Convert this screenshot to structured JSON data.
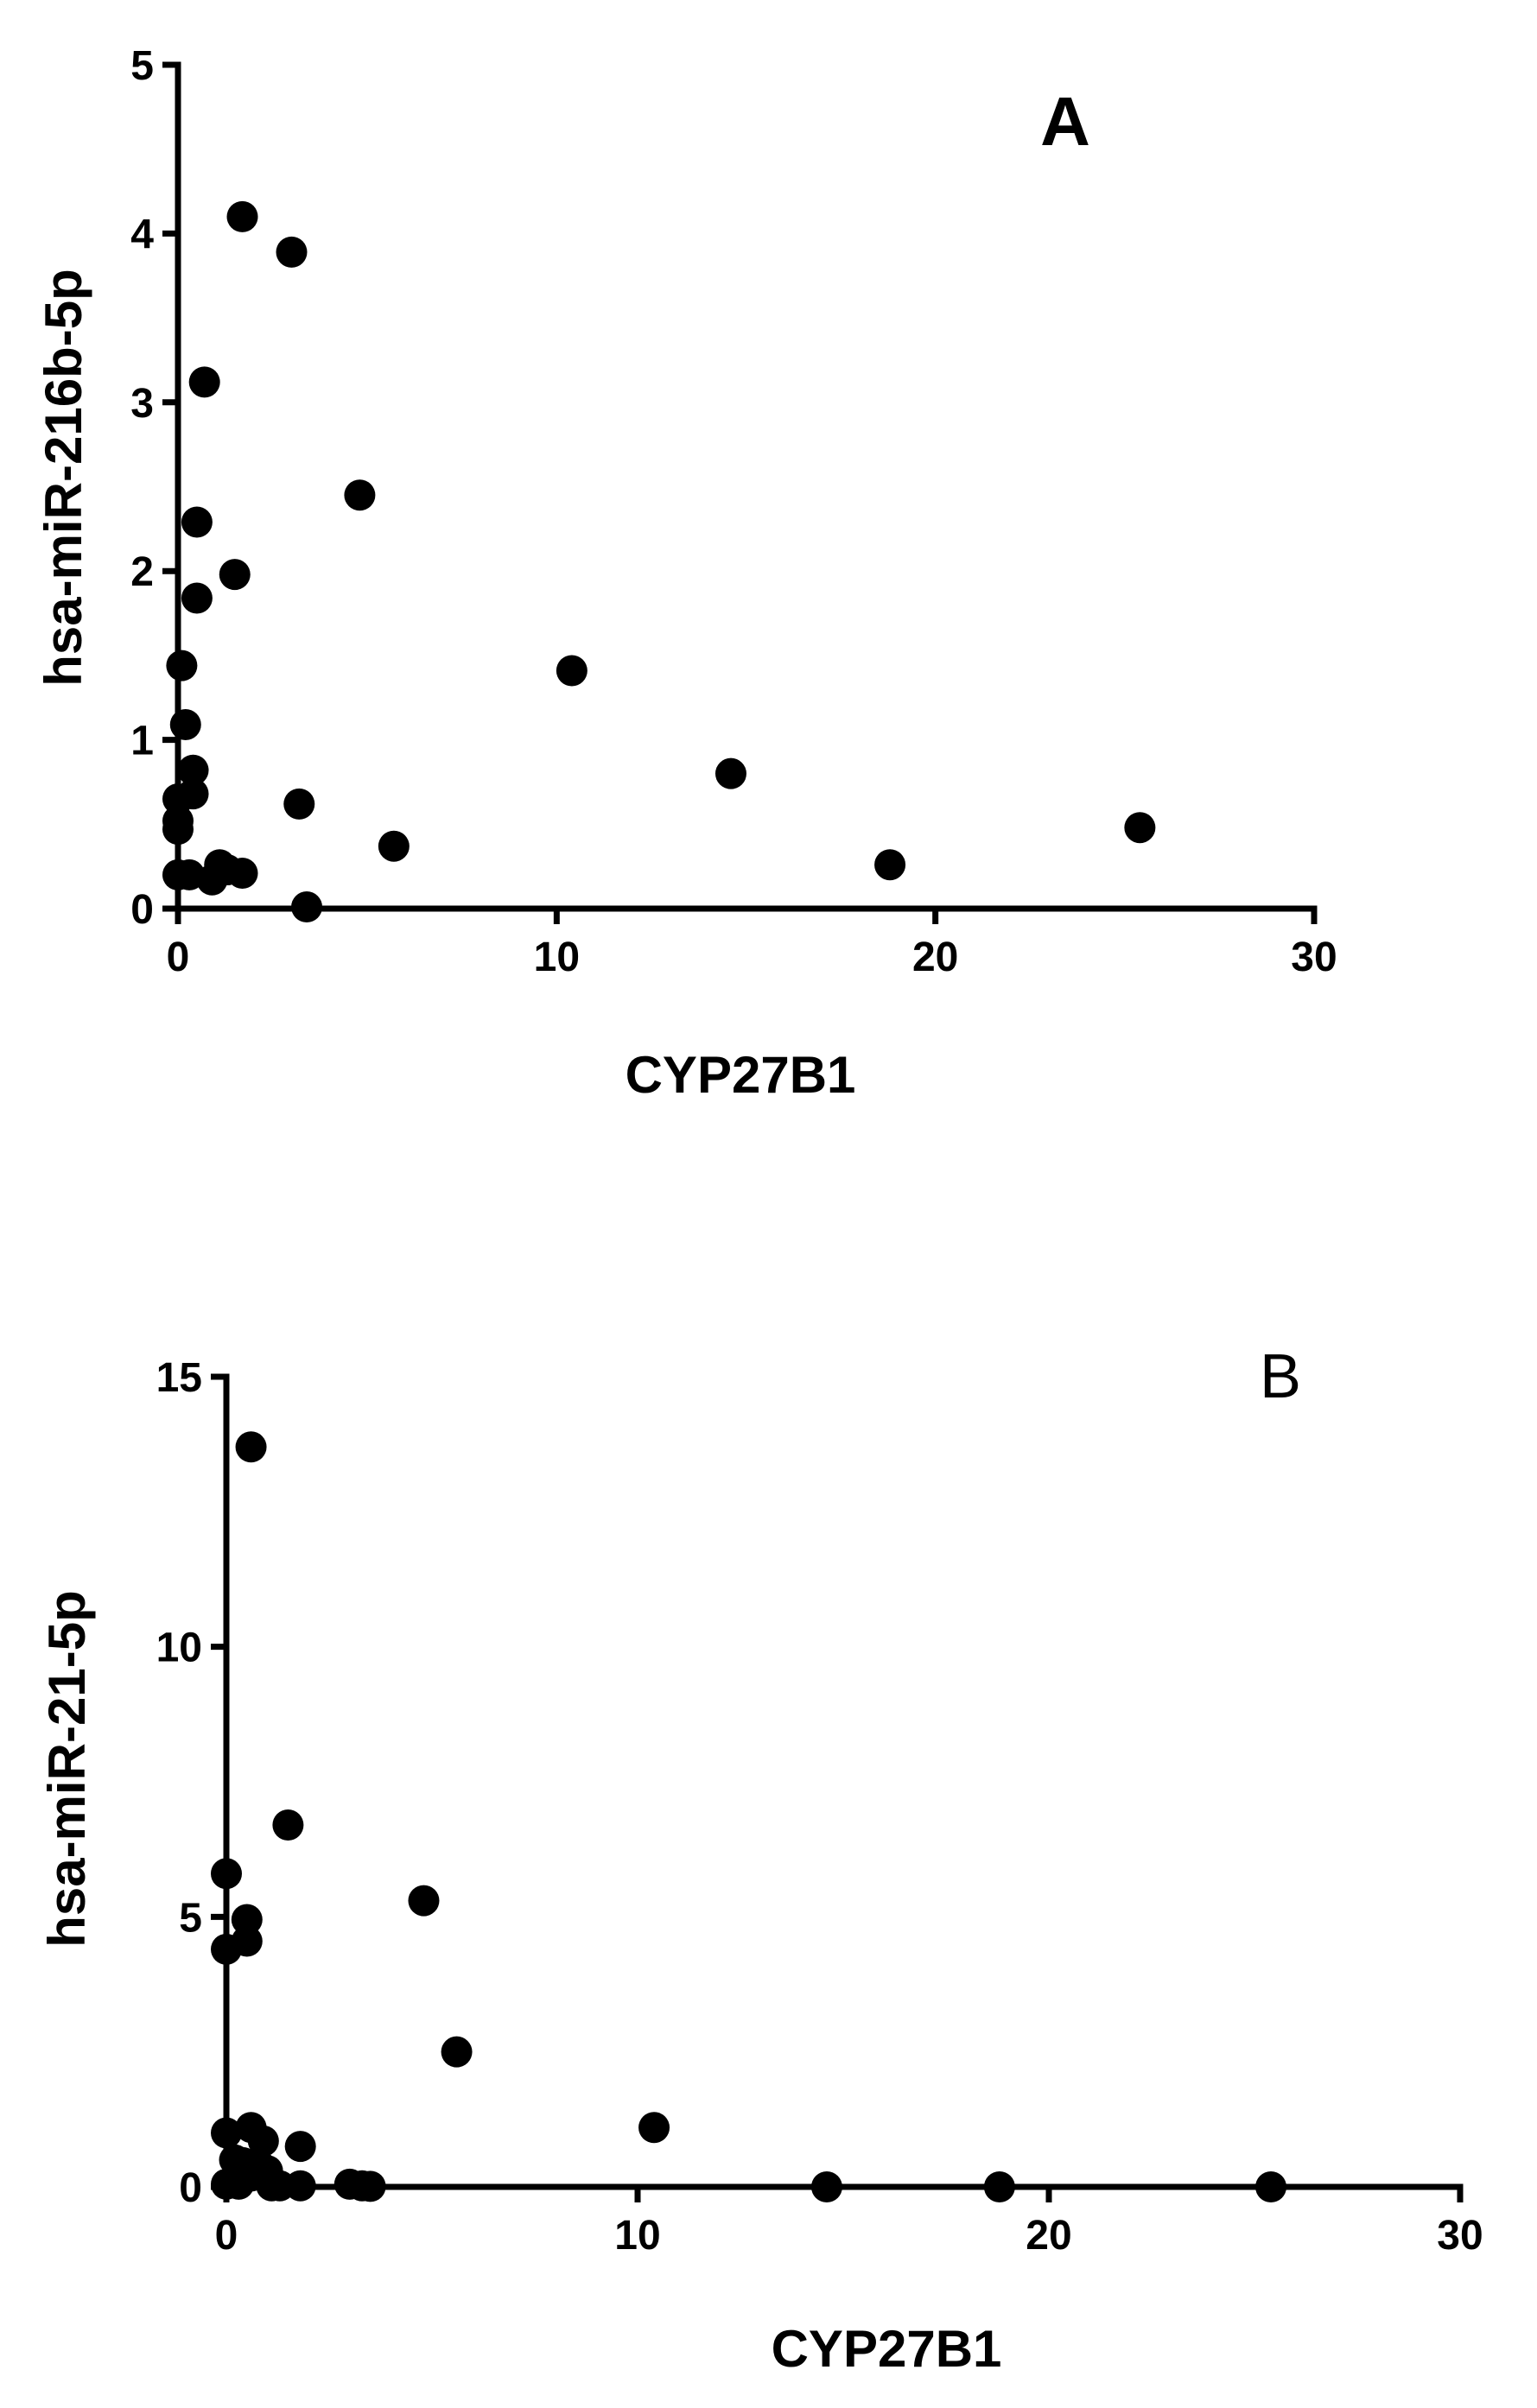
{
  "chart_data": [
    {
      "type": "scatter",
      "panel_label": "A",
      "xlabel": "CYP27B1",
      "ylabel": "hsa-miR-216b-5p",
      "xlim": [
        0,
        30
      ],
      "ylim": [
        0,
        5
      ],
      "xticks": [
        "0",
        "10",
        "20",
        "30"
      ],
      "yticks": [
        "0",
        "1",
        "2",
        "3",
        "4",
        "5"
      ],
      "points": [
        {
          "x": 1.7,
          "y": 4.1
        },
        {
          "x": 3.0,
          "y": 3.89
        },
        {
          "x": 0.7,
          "y": 3.12
        },
        {
          "x": 4.8,
          "y": 2.45
        },
        {
          "x": 0.5,
          "y": 2.29
        },
        {
          "x": 1.5,
          "y": 1.98
        },
        {
          "x": 0.5,
          "y": 1.84
        },
        {
          "x": 0.1,
          "y": 1.44
        },
        {
          "x": 10.4,
          "y": 1.41
        },
        {
          "x": 0.2,
          "y": 1.09
        },
        {
          "x": 0.4,
          "y": 0.82
        },
        {
          "x": 14.6,
          "y": 0.8
        },
        {
          "x": 0.4,
          "y": 0.68
        },
        {
          "x": 0.0,
          "y": 0.65
        },
        {
          "x": 3.2,
          "y": 0.62
        },
        {
          "x": 0.0,
          "y": 0.52
        },
        {
          "x": 25.4,
          "y": 0.48
        },
        {
          "x": 0.0,
          "y": 0.47
        },
        {
          "x": 5.7,
          "y": 0.37
        },
        {
          "x": 1.1,
          "y": 0.26
        },
        {
          "x": 18.8,
          "y": 0.26
        },
        {
          "x": 1.3,
          "y": 0.23
        },
        {
          "x": 0.0,
          "y": 0.2
        },
        {
          "x": 0.3,
          "y": 0.2
        },
        {
          "x": 1.7,
          "y": 0.21
        },
        {
          "x": 0.9,
          "y": 0.17
        },
        {
          "x": 3.4,
          "y": 0.01
        }
      ]
    },
    {
      "type": "scatter",
      "panel_label": "B",
      "xlabel": "CYP27B1",
      "ylabel": "hsa-miR-21-5p",
      "xlim": [
        0,
        30
      ],
      "ylim": [
        0,
        15
      ],
      "xticks": [
        "0",
        "10",
        "20",
        "30"
      ],
      "yticks": [
        "0",
        "5",
        "10",
        "15"
      ],
      "points": [
        {
          "x": 0.6,
          "y": 13.7
        },
        {
          "x": 1.5,
          "y": 6.7
        },
        {
          "x": 0.0,
          "y": 5.8
        },
        {
          "x": 4.8,
          "y": 5.3
        },
        {
          "x": 0.5,
          "y": 4.95
        },
        {
          "x": 0.5,
          "y": 4.55
        },
        {
          "x": 0.0,
          "y": 4.4
        },
        {
          "x": 5.6,
          "y": 2.5
        },
        {
          "x": 10.4,
          "y": 1.1
        },
        {
          "x": 0.0,
          "y": 1.0
        },
        {
          "x": 0.6,
          "y": 1.1
        },
        {
          "x": 0.9,
          "y": 0.85
        },
        {
          "x": 1.8,
          "y": 0.75
        },
        {
          "x": 0.2,
          "y": 0.5
        },
        {
          "x": 0.4,
          "y": 0.45
        },
        {
          "x": 0.8,
          "y": 0.4
        },
        {
          "x": 1.0,
          "y": 0.3
        },
        {
          "x": 0.6,
          "y": 0.2
        },
        {
          "x": 0.0,
          "y": 0.05
        },
        {
          "x": 0.3,
          "y": 0.05
        },
        {
          "x": 1.1,
          "y": 0.02
        },
        {
          "x": 1.3,
          "y": 0.02
        },
        {
          "x": 1.8,
          "y": 0.02
        },
        {
          "x": 3.0,
          "y": 0.05
        },
        {
          "x": 3.3,
          "y": 0.02
        },
        {
          "x": 3.5,
          "y": 0.01
        },
        {
          "x": 14.6,
          "y": 0.0
        },
        {
          "x": 18.8,
          "y": 0.0
        },
        {
          "x": 25.4,
          "y": 0.0
        }
      ]
    }
  ]
}
